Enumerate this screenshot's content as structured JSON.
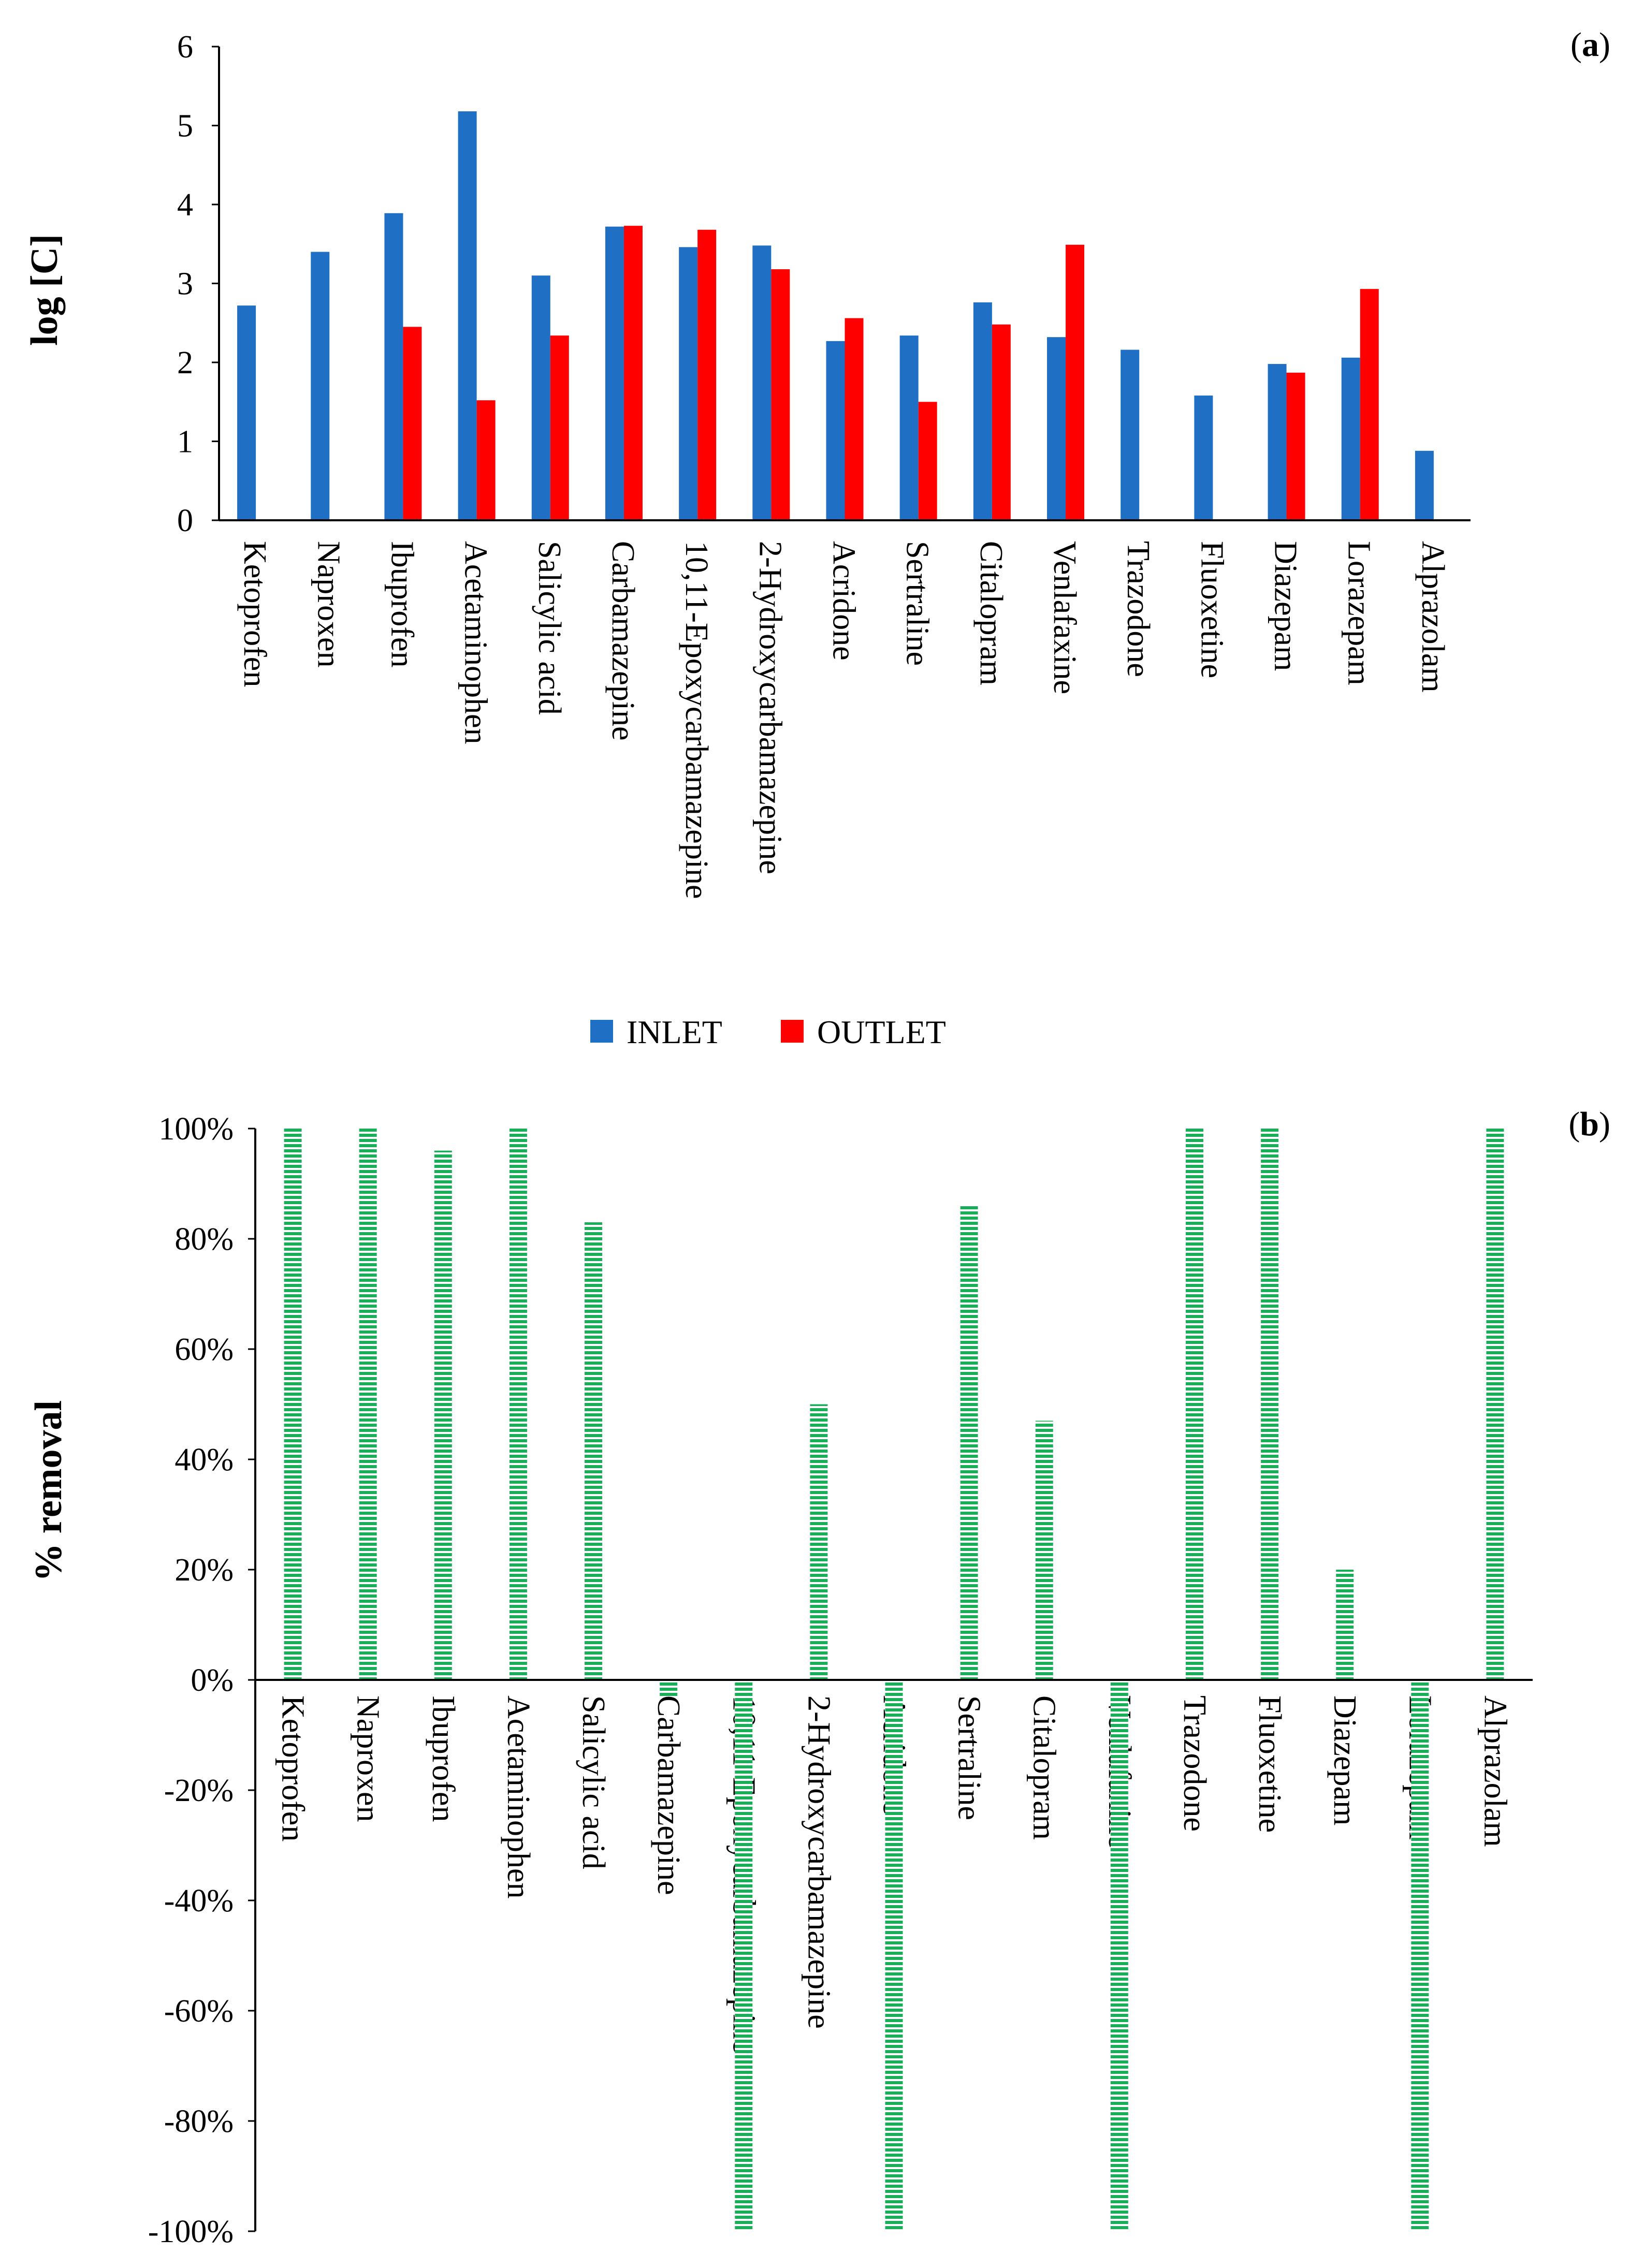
{
  "chart_data": [
    {
      "type": "bar",
      "panel_label": "(a)",
      "panel_letter": "a",
      "ylabel": "log [C]",
      "ylim": [
        0,
        6
      ],
      "yticks": [
        0,
        1,
        2,
        3,
        4,
        5,
        6
      ],
      "ytick_labels": [
        "0",
        "1",
        "2",
        "3",
        "4",
        "5",
        "6"
      ],
      "grid": false,
      "legend_position": "bottom-center",
      "categories": [
        "Ketoprofen",
        "Naproxen",
        "Ibuprofen",
        "Acetaminophen",
        "Salicylic acid",
        "Carbamazepine",
        "10,11-Epoxycarbamazepine",
        "2-Hydroxycarbamazepine",
        "Acridone",
        "Sertraline",
        "Citalopram",
        "Venlafaxine",
        "Trazodone",
        "Fluoxetine",
        "Diazepam",
        "Lorazepam",
        "Alprazolam"
      ],
      "series": [
        {
          "name": "INLET",
          "color": "#1F6FC5",
          "values": [
            2.72,
            3.4,
            3.89,
            5.18,
            3.1,
            3.72,
            3.46,
            3.48,
            2.27,
            2.34,
            2.76,
            2.32,
            2.16,
            1.58,
            1.98,
            2.06,
            0.88
          ]
        },
        {
          "name": "OUTLET",
          "color": "#FF0000",
          "values": [
            null,
            null,
            2.45,
            1.52,
            2.34,
            3.73,
            3.68,
            3.18,
            2.56,
            1.5,
            2.48,
            3.49,
            null,
            null,
            1.87,
            2.93,
            null
          ]
        }
      ]
    },
    {
      "type": "bar",
      "panel_label": "(b)",
      "panel_letter": "b",
      "ylabel": "% removal",
      "ylim": [
        -100,
        100
      ],
      "yticks": [
        -100,
        -80,
        -60,
        -40,
        -20,
        0,
        20,
        40,
        60,
        80,
        100
      ],
      "ytick_labels": [
        "-100%",
        "-80%",
        "-60%",
        "-40%",
        "-20%",
        "0%",
        "20%",
        "40%",
        "60%",
        "80%",
        "100%"
      ],
      "grid": false,
      "categories": [
        "Ketoprofen",
        "Naproxen",
        "Ibuprofen",
        "Acetaminophen",
        "Salicylic acid",
        "Carbamazepine",
        "10,11-Epoxycarbamazepine",
        "2-Hydroxycarbamazepine",
        "Acridone",
        "Sertraline",
        "Citalopram",
        "Venlafaxine",
        "Trazodone",
        "Fluoxetine",
        "Diazepam",
        "Lorazepam",
        "Alprazolam"
      ],
      "series": [
        {
          "name": "% removal",
          "color": "#1AAE5A",
          "values": [
            100,
            100,
            96,
            100,
            83,
            -3,
            -100,
            50,
            -100,
            86,
            47,
            -100,
            100,
            100,
            20,
            -100,
            100
          ]
        }
      ]
    }
  ]
}
